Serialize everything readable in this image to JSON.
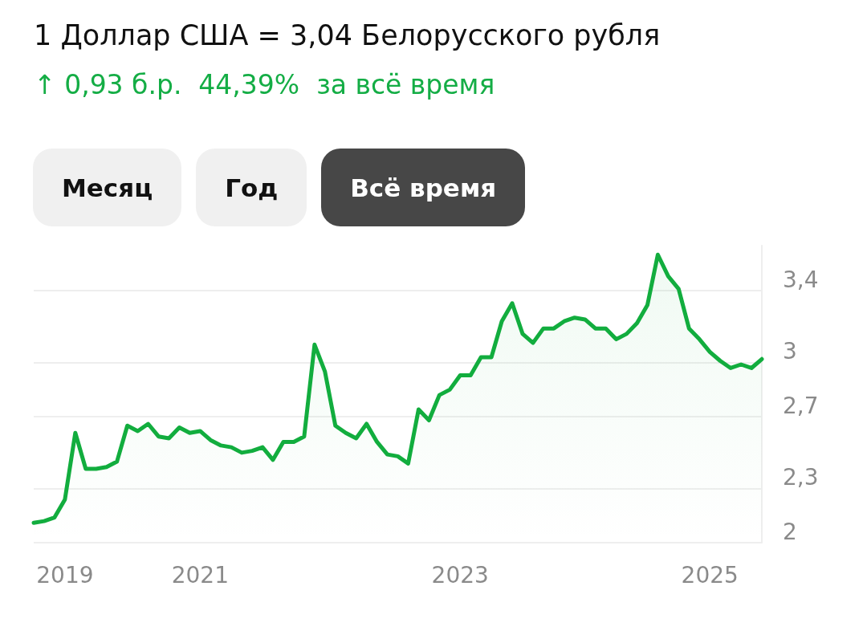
{
  "chart_data": {
    "type": "area",
    "title": "1 Доллар США = 3,04 Белорусского рубля",
    "subtitle": "↑ 0,93 б.р.  44,39%  за всё время",
    "annotations": [
      "Месяц",
      "Год",
      "Всё время"
    ],
    "categories": [
      null,
      null,
      null,
      "2019",
      null,
      null,
      null,
      null,
      null,
      null,
      null,
      null,
      null,
      null,
      null,
      null,
      "2021",
      null,
      null,
      null,
      null,
      null,
      null,
      null,
      null,
      null,
      null,
      null,
      null,
      null,
      null,
      null,
      null,
      null,
      null,
      null,
      null,
      null,
      null,
      null,
      null,
      "2023",
      null,
      null,
      null,
      null,
      null,
      null,
      null,
      null,
      null,
      null,
      null,
      null,
      null,
      null,
      null,
      null,
      null,
      null,
      null,
      null,
      null,
      null,
      null,
      "2025",
      null,
      null,
      null,
      null,
      null
    ],
    "series": [
      {
        "color": "#12ad3e",
        "values": [
          2.11,
          2.12,
          2.14,
          2.24,
          2.61,
          2.41,
          2.41,
          2.42,
          2.45,
          2.65,
          2.62,
          2.66,
          2.59,
          2.58,
          2.64,
          2.61,
          2.62,
          2.57,
          2.54,
          2.53,
          2.5,
          2.51,
          2.53,
          2.46,
          2.56,
          2.56,
          2.59,
          3.1,
          2.95,
          2.65,
          2.61,
          2.58,
          2.66,
          2.56,
          2.49,
          2.48,
          2.44,
          2.74,
          2.68,
          2.82,
          2.85,
          2.93,
          2.93,
          3.03,
          3.03,
          3.23,
          3.33,
          3.16,
          3.11,
          3.19,
          3.19,
          3.23,
          3.25,
          3.24,
          3.19,
          3.19,
          3.13,
          3.16,
          3.22,
          3.32,
          3.6,
          3.48,
          3.41,
          3.19,
          3.13,
          3.06,
          3.01,
          2.97,
          2.99,
          2.97,
          3.02
        ]
      }
    ],
    "ylim": [
      2,
      3.65
    ],
    "yticks": [
      {
        "value": 2,
        "label": "2"
      },
      {
        "value": 2.3,
        "label": "2,3"
      },
      {
        "value": 2.7,
        "label": "2,7"
      },
      {
        "value": 3,
        "label": "3"
      },
      {
        "value": 3.4,
        "label": "3,4"
      }
    ],
    "grid": "y",
    "marker": "none",
    "line_style": "solid"
  }
}
